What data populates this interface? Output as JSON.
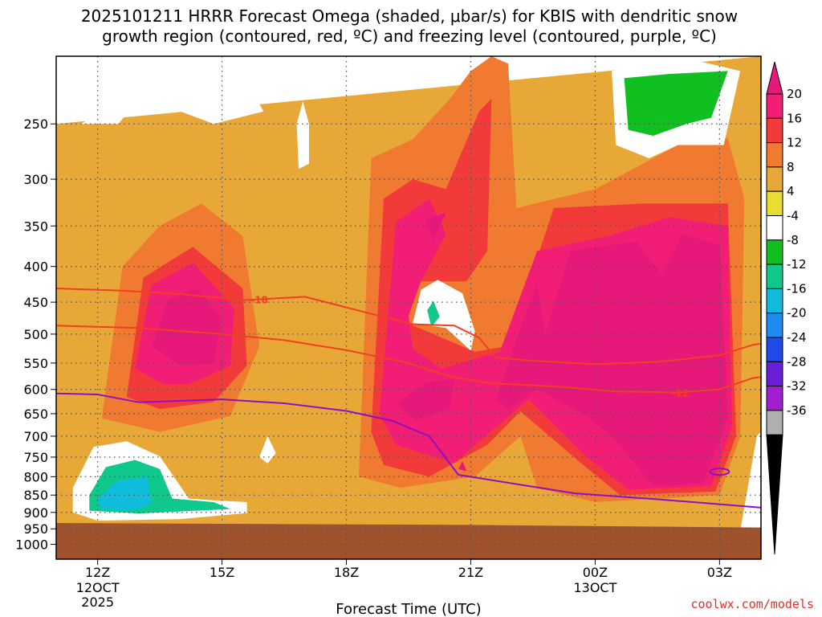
{
  "title_line1": "2025101211 HRRR Forecast Omega (shaded, μbar/s) for KBIS with dendritic snow",
  "title_line2": "growth region (contoured, red, ºC) and freezing level (contoured, purple, ºC)",
  "credit": "coolwx.com/models",
  "colors": {
    "frame": "#000000",
    "grid": "#555555",
    "ground": "#a0522d",
    "dgz_line": "#f04020",
    "freezing_line": "#9010c0"
  },
  "chart_data": {
    "type": "heatmap",
    "title": "2025101211 HRRR Forecast Omega (shaded, μbar/s) for KBIS with dendritic snow growth region (contoured, red, ºC) and freezing level (contoured, purple, ºC)",
    "xlabel": "Forecast Time (UTC)",
    "ylabel": "",
    "x_range_hours": [
      11,
      28
    ],
    "y_axis_scale": "log",
    "y_range_hPa": [
      1050,
      200
    ],
    "x_ticks": [
      {
        "hour": 12,
        "label": "12Z",
        "sub": [
          "12OCT",
          "2025"
        ]
      },
      {
        "hour": 15,
        "label": "15Z",
        "sub": []
      },
      {
        "hour": 18,
        "label": "18Z",
        "sub": []
      },
      {
        "hour": 21,
        "label": "21Z",
        "sub": []
      },
      {
        "hour": 24,
        "label": "00Z",
        "sub": [
          "13OCT"
        ]
      },
      {
        "hour": 27,
        "label": "03Z",
        "sub": []
      }
    ],
    "y_ticks": [
      250,
      300,
      350,
      400,
      450,
      500,
      550,
      600,
      650,
      700,
      750,
      800,
      850,
      900,
      950,
      1000
    ],
    "grid": true,
    "colorbar": {
      "units": "μbar/s",
      "labels": [
        "20",
        "16",
        "12",
        "8",
        "4",
        "-4",
        "-8",
        "-12",
        "-16",
        "-20",
        "-24",
        "-28",
        "-32",
        "-36"
      ],
      "colors": [
        "#f21d75",
        "#f23a3a",
        "#f07a30",
        "#e8a838",
        "#e8dd30",
        "#ffffff",
        "#10c020",
        "#10c88c",
        "#10bcdc",
        "#1e8cf0",
        "#1f4ce8",
        "#6a1ed8",
        "#a21ed0",
        "#b0b0b0"
      ],
      "top_cap_color": "#e6197a",
      "bottom_cap_color": "#000000"
    },
    "ground_pressure_hPa": [
      [
        11,
        932
      ],
      [
        21,
        938
      ],
      [
        28,
        946
      ]
    ],
    "dgz_contours": [
      {
        "label": "-18",
        "label_hour": 15.9,
        "points": [
          [
            11,
            430
          ],
          [
            12.5,
            433
          ],
          [
            14,
            438
          ],
          [
            15.5,
            447
          ],
          [
            17,
            442
          ],
          [
            18.5,
            466
          ],
          [
            19.6,
            484
          ],
          [
            20.6,
            486
          ],
          [
            21.2,
            506
          ],
          [
            21.6,
            540
          ],
          [
            22.5,
            546
          ],
          [
            24,
            552
          ],
          [
            25.5,
            548
          ],
          [
            27,
            536
          ],
          [
            27.8,
            518
          ],
          [
            28,
            516
          ]
        ]
      },
      {
        "label": "-12",
        "label_hour": 26.05,
        "points": [
          [
            11,
            486
          ],
          [
            13,
            490
          ],
          [
            15,
            500
          ],
          [
            16.5,
            510
          ],
          [
            18,
            527
          ],
          [
            19.5,
            550
          ],
          [
            20.5,
            575
          ],
          [
            21.5,
            588
          ],
          [
            23,
            594
          ],
          [
            24.5,
            604
          ],
          [
            26,
            606
          ],
          [
            27,
            600
          ],
          [
            27.8,
            578
          ],
          [
            28,
            576
          ]
        ]
      }
    ],
    "freezing_level": {
      "label": "0",
      "points": [
        [
          11,
          608
        ],
        [
          12,
          610
        ],
        [
          13,
          626
        ],
        [
          15,
          620
        ],
        [
          16.5,
          628
        ],
        [
          18,
          644
        ],
        [
          19.1,
          665
        ],
        [
          20,
          700
        ],
        [
          20.7,
          795
        ],
        [
          22,
          818
        ],
        [
          23.5,
          845
        ],
        [
          25.5,
          862
        ],
        [
          27,
          876
        ],
        [
          28,
          886
        ]
      ]
    },
    "omega_regions": [
      {
        "value": -6,
        "points": [
          [
            11.6,
            250
          ],
          [
            12.3,
            235
          ],
          [
            13,
            230
          ],
          [
            12.5,
            250
          ]
        ]
      },
      {
        "value": -6,
        "points": [
          [
            14,
            240
          ],
          [
            15.8,
            228
          ],
          [
            16,
            240
          ],
          [
            14.8,
            250
          ]
        ]
      },
      {
        "value": -6,
        "points": [
          [
            16.8,
            250
          ],
          [
            16.95,
            232
          ],
          [
            17.1,
            250
          ],
          [
            17.1,
            285
          ],
          [
            16.85,
            290
          ]
        ]
      },
      {
        "value": -6,
        "points": [
          [
            11.4,
            830
          ],
          [
            11.9,
            725
          ],
          [
            12.7,
            712
          ],
          [
            13.5,
            748
          ],
          [
            14.2,
            860
          ],
          [
            14.8,
            865
          ],
          [
            15.6,
            870
          ],
          [
            15.6,
            902
          ],
          [
            14,
            920
          ],
          [
            12,
            925
          ],
          [
            11.4,
            900
          ]
        ]
      },
      {
        "value": -14,
        "points": [
          [
            11.8,
            850
          ],
          [
            12.2,
            775
          ],
          [
            12.9,
            757
          ],
          [
            13.5,
            780
          ],
          [
            13.8,
            860
          ],
          [
            14.8,
            870
          ],
          [
            15.2,
            890
          ],
          [
            13,
            903
          ],
          [
            11.8,
            895
          ]
        ]
      },
      {
        "value": -18,
        "points": [
          [
            12,
            860
          ],
          [
            12.5,
            810
          ],
          [
            13.2,
            800
          ],
          [
            13.3,
            875
          ],
          [
            12.8,
            895
          ],
          [
            12.1,
            890
          ]
        ]
      },
      {
        "value": -6,
        "points": [
          [
            15.9,
            750
          ],
          [
            16.1,
            700
          ],
          [
            16.3,
            740
          ],
          [
            16.1,
            766
          ]
        ]
      },
      {
        "value": -6,
        "points": [
          [
            24.4,
            210
          ],
          [
            26,
            200
          ],
          [
            27.5,
            210
          ],
          [
            27.1,
            268
          ],
          [
            26,
            268
          ],
          [
            25.3,
            280
          ],
          [
            24.5,
            268
          ]
        ]
      },
      {
        "value": -10,
        "points": [
          [
            24.7,
            215
          ],
          [
            25.8,
            212
          ],
          [
            27.2,
            210
          ],
          [
            26.8,
            245
          ],
          [
            26.2,
            250
          ],
          [
            25.4,
            260
          ],
          [
            24.8,
            255
          ]
        ]
      },
      {
        "value": -6,
        "points": [
          [
            19.8,
            432
          ],
          [
            20.2,
            418
          ],
          [
            20.8,
            437
          ],
          [
            21.1,
            495
          ],
          [
            21,
            528
          ],
          [
            20.4,
            490
          ],
          [
            19.6,
            482
          ]
        ]
      },
      {
        "value": -14,
        "points": [
          [
            19.95,
            462
          ],
          [
            20.1,
            448
          ],
          [
            20.25,
            472
          ],
          [
            20.05,
            488
          ]
        ]
      },
      {
        "value": -6,
        "points": [
          [
            27.5,
            955
          ],
          [
            27.9,
            700
          ],
          [
            28,
            690
          ],
          [
            28,
            955
          ]
        ]
      }
    ],
    "positive_regions": [
      {
        "value": 6,
        "points": [
          [
            11,
            950
          ],
          [
            11,
            250
          ],
          [
            28,
            200
          ],
          [
            28,
            950
          ]
        ]
      },
      {
        "value": 10,
        "points": [
          [
            12.1,
            660
          ],
          [
            12.6,
            400
          ],
          [
            13.5,
            350
          ],
          [
            14.5,
            325
          ],
          [
            15.5,
            362
          ],
          [
            15.9,
            520
          ],
          [
            15.2,
            655
          ],
          [
            13.5,
            690
          ]
        ]
      },
      {
        "value": 14,
        "points": [
          [
            12.7,
            615
          ],
          [
            13.1,
            415
          ],
          [
            14.3,
            375
          ],
          [
            15.5,
            430
          ],
          [
            15.6,
            555
          ],
          [
            14.8,
            625
          ],
          [
            13.5,
            640
          ]
        ]
      },
      {
        "value": 18,
        "points": [
          [
            12.9,
            560
          ],
          [
            13.3,
            425
          ],
          [
            14.3,
            395
          ],
          [
            15.3,
            460
          ],
          [
            15.2,
            555
          ],
          [
            14.2,
            590
          ],
          [
            13.6,
            590
          ]
        ]
      },
      {
        "value": 22,
        "points": [
          [
            13.3,
            520
          ],
          [
            13.7,
            446
          ],
          [
            14.4,
            430
          ],
          [
            15,
            475
          ],
          [
            14.8,
            550
          ],
          [
            14,
            555
          ]
        ]
      },
      {
        "value": 10,
        "points": [
          [
            18.3,
            800
          ],
          [
            18.6,
            280
          ],
          [
            19.6,
            263
          ],
          [
            20.5,
            230
          ],
          [
            21,
            210
          ],
          [
            21.5,
            200
          ],
          [
            21.9,
            205
          ],
          [
            22.1,
            330
          ],
          [
            24,
            310
          ],
          [
            26,
            268
          ],
          [
            27.2,
            262
          ],
          [
            27.6,
            320
          ],
          [
            27.5,
            700
          ],
          [
            27,
            850
          ],
          [
            24,
            870
          ],
          [
            22.6,
            830
          ],
          [
            22.2,
            700
          ],
          [
            21.1,
            800
          ],
          [
            19.3,
            830
          ]
        ]
      },
      {
        "value": 14,
        "points": [
          [
            18.6,
            690
          ],
          [
            18.9,
            320
          ],
          [
            19.6,
            300
          ],
          [
            20.4,
            310
          ],
          [
            21.2,
            240
          ],
          [
            21.5,
            230
          ],
          [
            21.4,
            380
          ],
          [
            20.9,
            420
          ],
          [
            19.7,
            420
          ],
          [
            19.4,
            480
          ],
          [
            21.1,
            530
          ],
          [
            21.9,
            520
          ],
          [
            23,
            330
          ],
          [
            25.2,
            325
          ],
          [
            27.2,
            325
          ],
          [
            27.4,
            700
          ],
          [
            26.9,
            840
          ],
          [
            24.6,
            850
          ],
          [
            23.6,
            760
          ],
          [
            22.2,
            645
          ],
          [
            21.4,
            720
          ],
          [
            20,
            800
          ],
          [
            18.9,
            770
          ]
        ]
      },
      {
        "value": 18,
        "points": [
          [
            18.8,
            650
          ],
          [
            19.2,
            345
          ],
          [
            20,
            320
          ],
          [
            20.4,
            360
          ],
          [
            19.8,
            420
          ],
          [
            19.5,
            470
          ],
          [
            19.6,
            525
          ],
          [
            20.3,
            560
          ],
          [
            21.7,
            530
          ],
          [
            22.6,
            380
          ],
          [
            24.3,
            362
          ],
          [
            25.8,
            340
          ],
          [
            27.2,
            350
          ],
          [
            27.3,
            680
          ],
          [
            26.8,
            825
          ],
          [
            24.8,
            835
          ],
          [
            23.8,
            750
          ],
          [
            22.4,
            620
          ],
          [
            21.6,
            680
          ],
          [
            20.6,
            765
          ],
          [
            19.2,
            720
          ]
        ]
      },
      {
        "value": 22,
        "points": [
          [
            19.2,
            630
          ],
          [
            19.9,
            586
          ],
          [
            20.6,
            580
          ],
          [
            20.5,
            640
          ],
          [
            19.7,
            665
          ]
        ]
      },
      {
        "value": 22,
        "points": [
          [
            19.9,
            342
          ],
          [
            20.4,
            335
          ],
          [
            20.1,
            368
          ]
        ]
      },
      {
        "value": 22,
        "points": [
          [
            21.6,
            620
          ],
          [
            22.6,
            420
          ],
          [
            22.8,
            500
          ],
          [
            23.4,
            380
          ],
          [
            25,
            368
          ],
          [
            25.6,
            410
          ],
          [
            26.1,
            360
          ],
          [
            27,
            372
          ],
          [
            27.2,
            660
          ],
          [
            26.6,
            818
          ],
          [
            25.4,
            825
          ],
          [
            24.4,
            700
          ],
          [
            23.7,
            650
          ],
          [
            22.6,
            600
          ],
          [
            21.9,
            640
          ]
        ]
      },
      {
        "value": 22,
        "points": [
          [
            20.7,
            780
          ],
          [
            20.8,
            760
          ],
          [
            20.9,
            786
          ]
        ]
      }
    ],
    "contour_levels": [
      -36,
      -32,
      -28,
      -24,
      -20,
      -16,
      -12,
      -8,
      -4,
      4,
      8,
      12,
      16,
      20
    ]
  }
}
